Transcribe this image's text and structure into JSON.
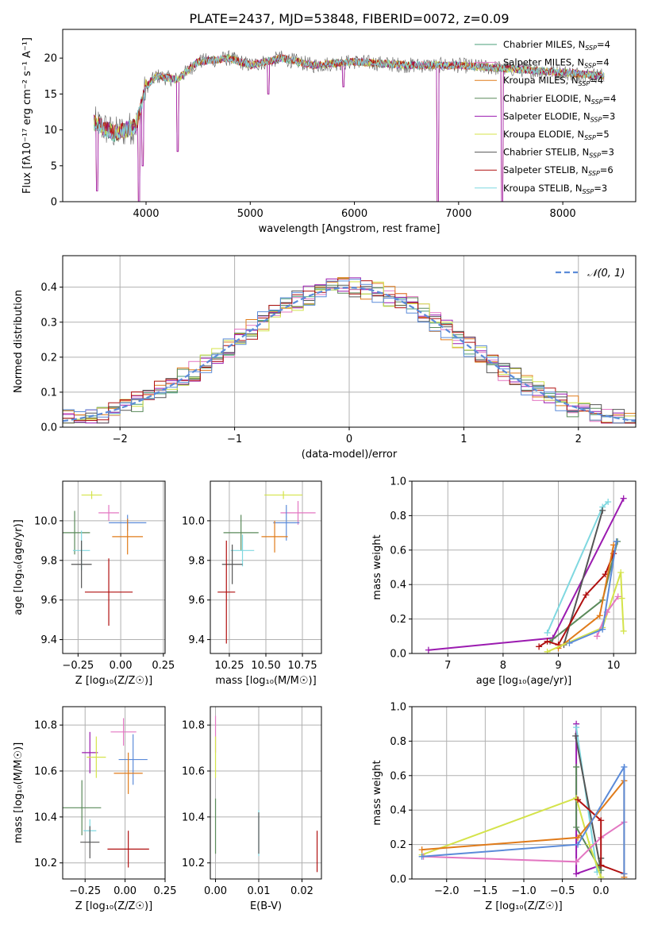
{
  "figure_title": "PLATE=2437, MJD=53848, FIBERID=0072, z=0.09",
  "colors": {
    "chabrier_miles": "#4a9f7a",
    "salpeter_miles": "#e377c2",
    "kroupa_miles": "#e07b1a",
    "chabrier_elodie": "#5a8a5a",
    "salpeter_elodie": "#9b1bb0",
    "kroupa_elodie": "#d4e34a",
    "chabrier_stelib": "#555555",
    "salpeter_stelib": "#b01010",
    "kroupa_stelib": "#7fd8e0",
    "blue": "#5b8bd9",
    "grid": "#b0b0b0"
  },
  "chart_data": [
    {
      "id": "spectrum",
      "type": "line",
      "title": "PLATE=2437, MJD=53848, FIBERID=0072, z=0.09",
      "xlabel": "wavelength [Angstrom, rest frame]",
      "ylabel": "Flux [fλ10⁻¹⁷ erg cm⁻² s⁻¹ A⁻¹]",
      "xlim": [
        3200,
        8700
      ],
      "ylim": [
        0,
        24
      ],
      "xticks": [
        "4000",
        "5000",
        "6000",
        "7000",
        "8000"
      ],
      "yticks": [
        "0",
        "5",
        "10",
        "15",
        "20"
      ],
      "grid": false,
      "legend_position": "upper right",
      "legend": [
        {
          "label": "Chabrier MILES, N",
          "sub": "SSP",
          "suffix": "=4",
          "color": "chabrier_miles"
        },
        {
          "label": "Salpeter MILES, N",
          "sub": "SSP",
          "suffix": "=4",
          "color": "salpeter_miles"
        },
        {
          "label": "Kroupa MILES, N",
          "sub": "SSP",
          "suffix": "=4",
          "color": "kroupa_miles"
        },
        {
          "label": "Chabrier ELODIE, N",
          "sub": "SSP",
          "suffix": "=4",
          "color": "chabrier_elodie"
        },
        {
          "label": "Salpeter ELODIE, N",
          "sub": "SSP",
          "suffix": "=3",
          "color": "salpeter_elodie"
        },
        {
          "label": "Kroupa ELODIE, N",
          "sub": "SSP",
          "suffix": "=5",
          "color": "kroupa_elodie"
        },
        {
          "label": "Chabrier STELIB, N",
          "sub": "SSP",
          "suffix": "=3",
          "color": "chabrier_stelib"
        },
        {
          "label": "Salpeter STELIB, N",
          "sub": "SSP",
          "suffix": "=6",
          "color": "salpeter_stelib"
        },
        {
          "label": "Kroupa STELIB, N",
          "sub": "SSP",
          "suffix": "=3",
          "color": "kroupa_stelib"
        }
      ],
      "trend": [
        [
          3500,
          11
        ],
        [
          3700,
          9.5
        ],
        [
          3900,
          10.5
        ],
        [
          4000,
          16
        ],
        [
          4100,
          17.5
        ],
        [
          4300,
          17
        ],
        [
          4500,
          19.5
        ],
        [
          4800,
          20
        ],
        [
          5000,
          19
        ],
        [
          5300,
          20
        ],
        [
          5600,
          19
        ],
        [
          6000,
          19.5
        ],
        [
          6500,
          19
        ],
        [
          7000,
          19
        ],
        [
          7500,
          18.5
        ],
        [
          8000,
          18
        ],
        [
          8400,
          17.5
        ]
      ],
      "absorption_lines": [
        [
          3530,
          1.5
        ],
        [
          3934,
          0
        ],
        [
          3970,
          5
        ],
        [
          4305,
          7
        ],
        [
          5175,
          15
        ],
        [
          5895,
          16
        ],
        [
          6800,
          0
        ],
        [
          7420,
          0
        ]
      ]
    },
    {
      "id": "residuals",
      "type": "line",
      "xlabel": "(data-model)/error",
      "ylabel": "Normed distribution",
      "xlim": [
        -2.5,
        2.5
      ],
      "ylim": [
        0,
        0.49
      ],
      "xticks": [
        "−2",
        "−1",
        "0",
        "1",
        "2"
      ],
      "yticks": [
        "0.0",
        "0.1",
        "0.2",
        "0.3",
        "0.4"
      ],
      "grid": true,
      "legend_position": "upper right",
      "legend_label": "𝒩(0, 1)",
      "normal": {
        "mu": 0,
        "sigma": 1
      }
    },
    {
      "id": "age_vs_Z",
      "type": "scatter",
      "xlabel": "Z [log₁₀(Z/Z☉)]",
      "ylabel": "age  [log₁₀(age/yr)]",
      "xlim": [
        -0.34,
        0.26
      ],
      "ylim": [
        9.33,
        10.2
      ],
      "xticks": [
        "−0.25",
        "0.00",
        "0.25"
      ],
      "yticks": [
        "9.4",
        "9.6",
        "9.8",
        "10.0"
      ],
      "grid": true,
      "points": [
        {
          "x": -0.17,
          "y": 10.13,
          "xe": 0.06,
          "ye": 0.02,
          "color": "kroupa_elodie"
        },
        {
          "x": -0.07,
          "y": 10.04,
          "xe": 0.06,
          "ye": 0.04,
          "color": "salpeter_miles"
        },
        {
          "x": 0.04,
          "y": 9.99,
          "xe": 0.11,
          "ye": 0.04,
          "color": "blue"
        },
        {
          "x": -0.27,
          "y": 9.94,
          "xe": 0.09,
          "ye": 0.11,
          "color": "chabrier_elodie"
        },
        {
          "x": 0.04,
          "y": 9.92,
          "xe": 0.09,
          "ye": 0.09,
          "color": "kroupa_miles"
        },
        {
          "x": -0.23,
          "y": 9.85,
          "xe": 0.05,
          "ye": 0.1,
          "color": "kroupa_stelib"
        },
        {
          "x": -0.23,
          "y": 9.78,
          "xe": 0.06,
          "ye": 0.12,
          "color": "chabrier_stelib"
        },
        {
          "x": -0.07,
          "y": 9.64,
          "xe": 0.14,
          "ye": 0.17,
          "color": "salpeter_stelib"
        }
      ]
    },
    {
      "id": "age_vs_mass",
      "type": "scatter",
      "xlabel": "mass [log₁₀(M/M☉)]",
      "ylabel": "",
      "xlim": [
        10.12,
        10.88
      ],
      "ylim": [
        9.33,
        10.2
      ],
      "xticks": [
        "10.25",
        "10.50",
        "10.75"
      ],
      "yticks": [
        "9.4",
        "9.6",
        "9.8",
        "10.0"
      ],
      "grid": true,
      "points": [
        {
          "x": 10.62,
          "y": 10.13,
          "xe": 0.13,
          "ye": 0.02,
          "color": "kroupa_elodie"
        },
        {
          "x": 10.72,
          "y": 10.04,
          "xe": 0.12,
          "ye": 0.06,
          "color": "salpeter_miles"
        },
        {
          "x": 10.64,
          "y": 9.99,
          "xe": 0.09,
          "ye": 0.09,
          "color": "blue"
        },
        {
          "x": 10.33,
          "y": 9.94,
          "xe": 0.12,
          "ye": 0.09,
          "color": "chabrier_elodie"
        },
        {
          "x": 10.56,
          "y": 9.92,
          "xe": 0.09,
          "ye": 0.08,
          "color": "kroupa_miles"
        },
        {
          "x": 10.34,
          "y": 9.85,
          "xe": 0.08,
          "ye": 0.08,
          "color": "kroupa_stelib"
        },
        {
          "x": 10.27,
          "y": 9.78,
          "xe": 0.07,
          "ye": 0.1,
          "color": "chabrier_stelib"
        },
        {
          "x": 10.23,
          "y": 9.64,
          "xe": 0.06,
          "ye": 0.26,
          "color": "salpeter_stelib"
        }
      ]
    },
    {
      "id": "mass_weight_vs_age",
      "type": "line",
      "xlabel": "age  [log₁₀(age/yr)]",
      "ylabel": "mass weight",
      "xlim": [
        6.35,
        10.4
      ],
      "ylim": [
        0,
        1.0
      ],
      "xticks": [
        "7",
        "8",
        "9",
        "10"
      ],
      "yticks": [
        "0.0",
        "0.2",
        "0.4",
        "0.6",
        "0.8",
        "1.0"
      ],
      "grid": true,
      "series": [
        {
          "color": "salpeter_elodie",
          "x": [
            6.65,
            8.9,
            10.18
          ],
          "y": [
            0.02,
            0.09,
            0.9
          ]
        },
        {
          "color": "kroupa_stelib",
          "x": [
            8.8,
            9.8,
            9.9
          ],
          "y": [
            0.12,
            0.85,
            0.88
          ]
        },
        {
          "color": "chabrier_stelib",
          "x": [
            9.1,
            9.8
          ],
          "y": [
            0.05,
            0.83
          ]
        },
        {
          "color": "chabrier_elodie",
          "x": [
            8.85,
            9.8,
            10.07
          ],
          "y": [
            0.07,
            0.31,
            0.65
          ]
        },
        {
          "color": "salpeter_stelib",
          "x": [
            8.65,
            8.8,
            9.0,
            9.5,
            9.85,
            10.0
          ],
          "y": [
            0.04,
            0.07,
            0.05,
            0.34,
            0.46,
            0.58
          ]
        },
        {
          "color": "kroupa_miles",
          "x": [
            9.0,
            9.75,
            10.0
          ],
          "y": [
            0.03,
            0.22,
            0.63
          ]
        },
        {
          "color": "kroupa_elodie",
          "x": [
            8.8,
            9.8,
            10.13,
            10.15,
            10.18
          ],
          "y": [
            0.01,
            0.15,
            0.47,
            0.32,
            0.13
          ]
        },
        {
          "color": "salpeter_miles",
          "x": [
            9.7,
            9.88,
            10.08
          ],
          "y": [
            0.1,
            0.24,
            0.33
          ]
        },
        {
          "color": "blue",
          "x": [
            9.2,
            9.8,
            10.05
          ],
          "y": [
            0.06,
            0.14,
            0.65
          ]
        }
      ]
    },
    {
      "id": "mass_vs_Z",
      "type": "scatter",
      "xlabel": "Z [log₁₀(Z/Z☉)]",
      "ylabel": "mass [log₁₀(M/M☉)]",
      "xlim": [
        -0.39,
        0.25
      ],
      "ylim": [
        10.13,
        10.88
      ],
      "xticks": [
        "−0.25",
        "0.00",
        "0.25"
      ],
      "yticks": [
        "10.2",
        "10.4",
        "10.6",
        "10.8"
      ],
      "grid": true,
      "points": [
        {
          "x": -0.22,
          "y": 10.68,
          "xe": 0.05,
          "ye": 0.09,
          "color": "salpeter_elodie"
        },
        {
          "x": -0.01,
          "y": 10.77,
          "xe": 0.08,
          "ye": 0.06,
          "color": "salpeter_miles"
        },
        {
          "x": 0.05,
          "y": 10.65,
          "xe": 0.09,
          "ye": 0.11,
          "color": "blue"
        },
        {
          "x": -0.18,
          "y": 10.66,
          "xe": 0.06,
          "ye": 0.09,
          "color": "kroupa_elodie"
        },
        {
          "x": 0.02,
          "y": 10.59,
          "xe": 0.09,
          "ye": 0.09,
          "color": "kroupa_miles"
        },
        {
          "x": -0.27,
          "y": 10.44,
          "xe": 0.12,
          "ye": 0.12,
          "color": "chabrier_elodie"
        },
        {
          "x": -0.22,
          "y": 10.34,
          "xe": 0.04,
          "ye": 0.05,
          "color": "kroupa_stelib"
        },
        {
          "x": -0.22,
          "y": 10.29,
          "xe": 0.06,
          "ye": 0.07,
          "color": "chabrier_stelib"
        },
        {
          "x": 0.02,
          "y": 10.26,
          "xe": 0.13,
          "ye": 0.08,
          "color": "salpeter_stelib"
        }
      ]
    },
    {
      "id": "mass_vs_EBV",
      "type": "scatter",
      "xlabel": "E(B-V)",
      "ylabel": "",
      "xlim": [
        -0.0012,
        0.0245
      ],
      "ylim": [
        10.13,
        10.88
      ],
      "xticks": [
        "0.00",
        "0.01",
        "0.02"
      ],
      "yticks": [
        "10.2",
        "10.4",
        "10.6",
        "10.8"
      ],
      "grid": true,
      "points": [
        {
          "x": 0.0,
          "y": 10.76,
          "xe": 0,
          "ye": 0.08,
          "color": "salpeter_miles"
        },
        {
          "x": 0.0,
          "y": 10.66,
          "xe": 0,
          "ye": 0.09,
          "color": "kroupa_elodie"
        },
        {
          "x": 0.0,
          "y": 10.36,
          "xe": 0,
          "ye": 0.12,
          "color": "chabrier_elodie"
        },
        {
          "x": 0.01,
          "y": 10.33,
          "xe": 0,
          "ye": 0.1,
          "color": "kroupa_stelib"
        },
        {
          "x": 0.01,
          "y": 10.33,
          "xe": 0,
          "ye": 0.09,
          "color": "chabrier_stelib"
        },
        {
          "x": 0.0235,
          "y": 10.25,
          "xe": 0,
          "ye": 0.09,
          "color": "salpeter_stelib"
        }
      ]
    },
    {
      "id": "mass_weight_vs_Z",
      "type": "line",
      "xlabel": "Z [log₁₀(Z/Z☉)]",
      "ylabel": "mass weight",
      "xlim": [
        -2.45,
        0.45
      ],
      "ylim": [
        0,
        1.0
      ],
      "xticks": [
        "−2.0",
        "−1.5",
        "−1.0",
        "−0.5",
        "0.0"
      ],
      "yticks": [
        "0.0",
        "0.2",
        "0.4",
        "0.6",
        "0.8",
        "1.0"
      ],
      "grid": true,
      "series": [
        {
          "color": "salpeter_elodie",
          "x": [
            -0.32,
            -0.32,
            0.0
          ],
          "y": [
            0.9,
            0.03,
            0.08
          ]
        },
        {
          "color": "kroupa_stelib",
          "x": [
            -0.32,
            -0.05,
            0.0
          ],
          "y": [
            0.88,
            0.04,
            0.12
          ]
        },
        {
          "color": "chabrier_stelib",
          "x": [
            -0.33,
            0.0,
            0.0
          ],
          "y": [
            0.83,
            0.05,
            0.12
          ]
        },
        {
          "color": "chabrier_elodie",
          "x": [
            -0.32,
            -0.32,
            0.0
          ],
          "y": [
            0.65,
            0.3,
            0.05
          ]
        },
        {
          "color": "kroupa_elodie",
          "x": [
            -2.32,
            -0.32,
            -0.15,
            0.0
          ],
          "y": [
            0.14,
            0.47,
            0.2,
            0.01
          ]
        },
        {
          "color": "salpeter_miles",
          "x": [
            -2.3,
            -0.32,
            0.0,
            0.3
          ],
          "y": [
            0.13,
            0.1,
            0.24,
            0.33
          ]
        },
        {
          "color": "salpeter_stelib",
          "x": [
            -0.3,
            0.0,
            0.0,
            0.3
          ],
          "y": [
            0.46,
            0.34,
            0.08,
            0.03
          ]
        },
        {
          "color": "kroupa_miles",
          "x": [
            -2.32,
            -0.3,
            0.3,
            0.3
          ],
          "y": [
            0.17,
            0.24,
            0.57,
            0.01
          ]
        },
        {
          "color": "blue",
          "x": [
            -2.32,
            -0.3,
            0.3,
            0.3
          ],
          "y": [
            0.13,
            0.2,
            0.65,
            0.03
          ]
        }
      ]
    }
  ]
}
